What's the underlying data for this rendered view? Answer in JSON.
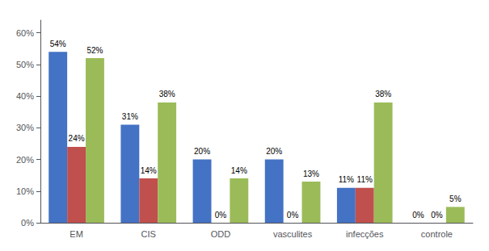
{
  "chart_data": {
    "type": "bar",
    "categories": [
      "EM",
      "CIS",
      "ODD",
      "vasculites",
      "infecções",
      "controle"
    ],
    "series": [
      {
        "color": "#4472C4",
        "values": [
          54,
          31,
          20,
          20,
          11,
          0
        ],
        "value_labels": [
          "54%",
          "31%",
          "20%",
          "20%",
          "11%",
          "0%"
        ]
      },
      {
        "color": "#C0504D",
        "values": [
          24,
          14,
          0,
          0,
          11,
          0
        ],
        "value_labels": [
          "24%",
          "14%",
          "0%",
          "0%",
          "11%",
          "0%"
        ]
      },
      {
        "color": "#9BBB59",
        "values": [
          52,
          38,
          14,
          13,
          38,
          5
        ],
        "value_labels": [
          "52%",
          "38%",
          "14%",
          "13%",
          "38%",
          "5%"
        ]
      }
    ],
    "ylim": [
      0,
      64
    ],
    "yticks": [
      {
        "value": 0,
        "label": "0%"
      },
      {
        "value": 10,
        "label": "10%"
      },
      {
        "value": 20,
        "label": "20%"
      },
      {
        "value": 30,
        "label": "30%"
      },
      {
        "value": 40,
        "label": "40%"
      },
      {
        "value": 50,
        "label": "50%"
      },
      {
        "value": 60,
        "label": "60%"
      }
    ],
    "grid": false,
    "data_labels": true
  }
}
